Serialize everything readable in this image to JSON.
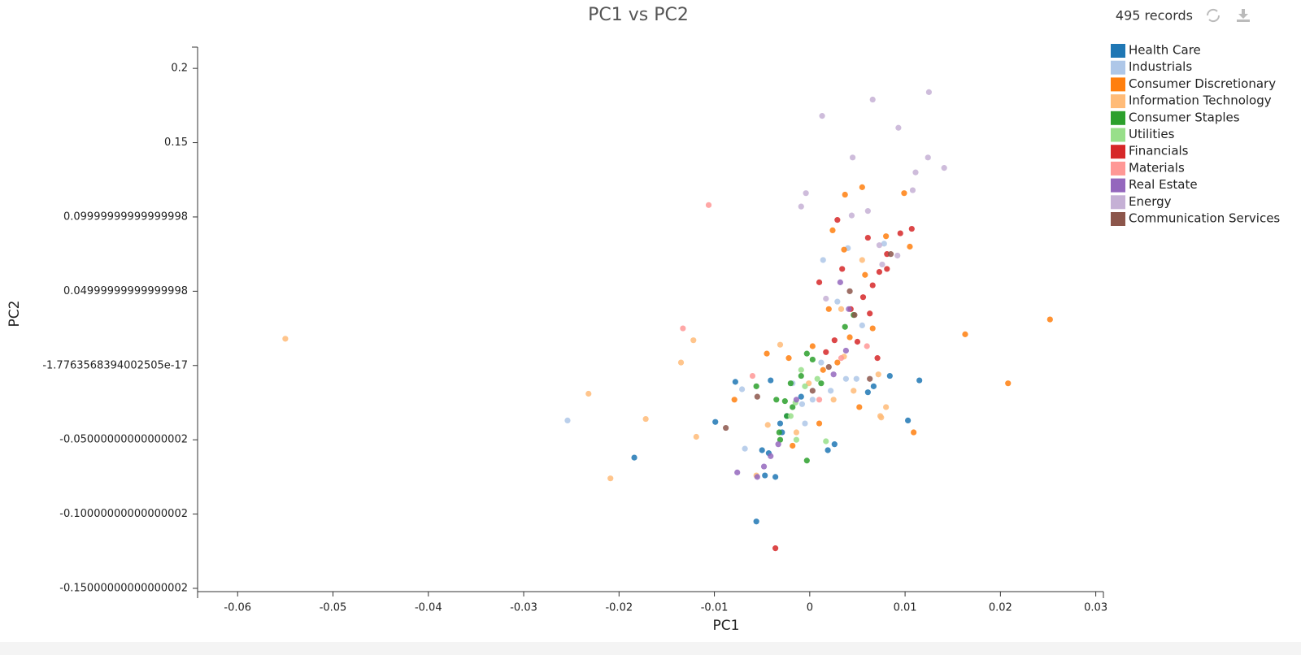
{
  "chart_data": {
    "type": "scatter",
    "title": "PC1 vs PC2",
    "record_count": "495 records",
    "x_label": "PC1",
    "y_label": "PC2",
    "xlim": [
      -0.0642,
      0.0308
    ],
    "ylim": [
      -0.1522,
      0.2143
    ],
    "xticks": [
      -0.06,
      -0.05,
      -0.04,
      -0.03,
      -0.02,
      -0.01,
      0,
      0.01,
      0.02,
      0.03
    ],
    "yticks": [
      0.2,
      0.15,
      0.09999999999999998,
      0.04999999999999998,
      -1.7763568394002505e-17,
      -0.05000000000000002,
      -0.10000000000000002,
      -0.15000000000000002
    ],
    "grid": false,
    "legend": "upper right",
    "series": [
      {
        "name": "Health Care",
        "color": "#1f77b4",
        "x": [
          -0.0078,
          0.0115,
          0.0084,
          0.0103,
          -0.0099,
          -0.0184,
          -0.0056,
          -0.0047,
          -0.0036,
          -0.005,
          0.0019,
          0.0026,
          0.0061,
          -0.0043,
          -0.0029,
          -0.0024,
          -0.0009,
          0.0067,
          -0.0041,
          -0.0031
        ],
        "values": [
          -0.011,
          -0.01,
          -0.007,
          -0.037,
          -0.038,
          -0.062,
          -0.105,
          -0.074,
          -0.075,
          -0.057,
          -0.057,
          -0.053,
          -0.018,
          -0.059,
          -0.045,
          -0.034,
          -0.021,
          -0.014,
          -0.01,
          -0.039
        ]
      },
      {
        "name": "Industrials",
        "color": "#aec7e8",
        "x": [
          -0.0254,
          -0.0068,
          0.0014,
          0.004,
          0.0055,
          0.0038,
          -0.0008,
          0.0003,
          0.0049,
          -0.0018,
          0.0022,
          0.0029,
          0.0078,
          -0.0071,
          -0.0005,
          0.0012
        ],
        "values": [
          -0.037,
          -0.056,
          0.071,
          0.079,
          0.027,
          -0.009,
          -0.026,
          -0.023,
          -0.009,
          -0.012,
          -0.017,
          0.043,
          0.082,
          -0.016,
          -0.039,
          0.002
        ]
      },
      {
        "name": "Consumer Discretionary",
        "color": "#ff7f0e",
        "x": [
          0.0252,
          0.0163,
          0.0208,
          0.0109,
          0.0055,
          0.0037,
          0.0099,
          0.0105,
          0.008,
          0.0024,
          0.0036,
          0.0058,
          -0.0045,
          -0.0079,
          0.0052,
          0.0003,
          0.0029,
          0.0066,
          0.002,
          -0.0018,
          0.001,
          0.0042,
          -0.0022,
          0.0014
        ],
        "values": [
          0.031,
          0.021,
          -0.012,
          -0.045,
          0.12,
          0.115,
          0.116,
          0.08,
          0.087,
          0.091,
          0.078,
          0.061,
          0.008,
          -0.023,
          -0.028,
          0.013,
          0.002,
          0.025,
          0.038,
          -0.054,
          -0.039,
          0.019,
          0.005,
          -0.003
        ]
      },
      {
        "name": "Information Technology",
        "color": "#ffbb78",
        "x": [
          -0.055,
          -0.0232,
          -0.0172,
          -0.0209,
          -0.0119,
          -0.0135,
          -0.0122,
          -0.0031,
          0.0074,
          0.0075,
          0.008,
          -0.0056,
          -0.0044,
          0.0072,
          0.0046,
          0.0025,
          -0.0001,
          -0.0014,
          0.0036,
          0.0033,
          0.0055
        ],
        "values": [
          0.018,
          -0.019,
          -0.036,
          -0.076,
          -0.048,
          0.002,
          0.017,
          0.014,
          -0.034,
          -0.035,
          -0.028,
          -0.074,
          -0.04,
          -0.006,
          -0.017,
          -0.023,
          -0.012,
          -0.045,
          0.006,
          0.038,
          0.071
        ]
      },
      {
        "name": "Consumer Staples",
        "color": "#2ca02c",
        "x": [
          -0.0026,
          -0.0018,
          -0.0024,
          -0.0031,
          -0.0003,
          -0.0003,
          0.0037,
          0.0046,
          0.0003,
          -0.0009,
          -0.0035,
          -0.002,
          0.0012,
          -0.0032,
          -0.0056
        ],
        "values": [
          -0.024,
          -0.028,
          -0.034,
          -0.05,
          -0.064,
          0.008,
          0.026,
          0.034,
          0.004,
          -0.007,
          -0.023,
          -0.012,
          -0.012,
          -0.045,
          -0.014
        ]
      },
      {
        "name": "Utilities",
        "color": "#98df8a",
        "x": [
          0.0017,
          -0.0014,
          -0.002,
          -0.0005,
          0.0008,
          -0.0009,
          -0.0015
        ],
        "values": [
          -0.051,
          -0.05,
          -0.034,
          -0.014,
          -0.009,
          -0.003,
          -0.025
        ]
      },
      {
        "name": "Financials",
        "color": "#d62728",
        "x": [
          -0.0036,
          0.0029,
          0.0061,
          0.0095,
          0.0107,
          0.0081,
          0.0073,
          0.0066,
          0.0056,
          0.001,
          0.0043,
          0.0071,
          0.005,
          0.0026,
          0.0017,
          0.0034,
          0.0063,
          0.0081
        ],
        "values": [
          -0.123,
          0.098,
          0.086,
          0.089,
          0.092,
          0.075,
          0.063,
          0.054,
          0.046,
          0.056,
          0.038,
          0.005,
          0.016,
          0.017,
          0.009,
          0.065,
          0.035,
          0.065
        ]
      },
      {
        "name": "Materials",
        "color": "#ff9896",
        "x": [
          -0.0106,
          -0.0133,
          0.0033,
          0.001,
          -0.006,
          0.006
        ],
        "values": [
          0.108,
          0.025,
          0.005,
          -0.023,
          -0.007,
          0.013
        ]
      },
      {
        "name": "Real Estate",
        "color": "#9467bd",
        "x": [
          -0.0076,
          -0.0055,
          -0.0048,
          -0.0041,
          0.0032,
          0.0041,
          0.0038,
          0.0025,
          -0.0014,
          -0.0033
        ],
        "values": [
          -0.072,
          -0.075,
          -0.068,
          -0.061,
          0.056,
          0.038,
          0.01,
          -0.006,
          -0.023,
          -0.053
        ]
      },
      {
        "name": "Energy",
        "color": "#c5b0d5",
        "x": [
          0.0125,
          0.0066,
          0.0013,
          0.0093,
          0.0124,
          0.0141,
          0.0045,
          0.0111,
          0.0108,
          -0.0004,
          -0.0009,
          0.0061,
          0.0044,
          0.0073,
          0.0092,
          0.0017,
          0.0076
        ],
        "values": [
          0.184,
          0.179,
          0.168,
          0.16,
          0.14,
          0.133,
          0.14,
          0.13,
          0.118,
          0.116,
          0.107,
          0.104,
          0.101,
          0.081,
          0.074,
          0.045,
          0.068
        ]
      },
      {
        "name": "Communication Services",
        "color": "#8c564b",
        "x": [
          -0.0088,
          -0.0055,
          0.0042,
          0.0047,
          0.0063,
          0.0003,
          0.002,
          0.0085
        ],
        "values": [
          -0.042,
          -0.021,
          0.05,
          0.034,
          -0.009,
          -0.017,
          -0.001,
          0.075
        ]
      }
    ]
  }
}
